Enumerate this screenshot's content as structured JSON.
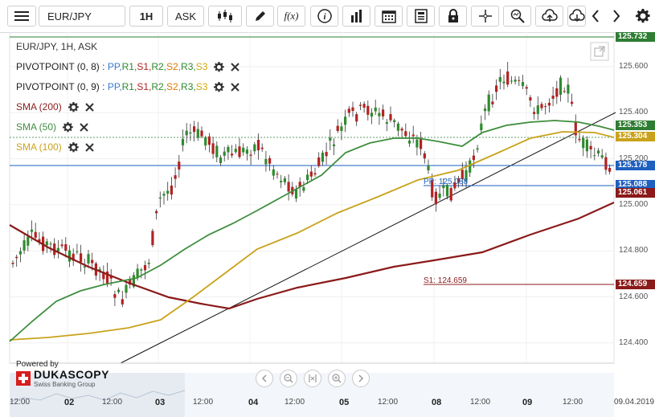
{
  "toolbar": {
    "symbol": "EUR/JPY",
    "period": "1H",
    "side": "ASK",
    "buttons": [
      "menu-icon",
      "candle-type-icon",
      "pencil-icon",
      "function-icon",
      "info-icon",
      "bar-chart-icon",
      "calendar-icon",
      "document-icon",
      "lock-icon",
      "crosshair-icon",
      "zoom-icon",
      "upload-icon",
      "download-icon",
      "arrow-left-icon",
      "arrow-right-icon",
      "gear-icon"
    ],
    "function_label": "f(x)"
  },
  "chart_title": "EUR/JPY, 1H, ASK",
  "legend": [
    {
      "label": "PIVOTPOINT (0, 8)",
      "levels": [
        "PP",
        "R1",
        "S1",
        "R2",
        "S2",
        "R3",
        "S3"
      ],
      "color": "#222222"
    },
    {
      "label": "PIVOTPOINT (0, 9)",
      "levels": [
        "PP",
        "R1",
        "S1",
        "R2",
        "S2",
        "R3",
        "S3"
      ],
      "color": "#222222"
    },
    {
      "label": "SMA (200)",
      "color": "#8b1a1a"
    },
    {
      "label": "SMA (50)",
      "color": "#3e8e3e"
    },
    {
      "label": "SMA (100)",
      "color": "#c9a21a"
    }
  ],
  "pivot_colors": {
    "PP": "#3a7bd5",
    "R1": "#2e8b2e",
    "S1": "#b22222",
    "R2": "#2e8b2e",
    "S2": "#e07b00",
    "R3": "#2e8b2e",
    "S3": "#d4a800"
  },
  "legend_separator": ":",
  "y_axis": {
    "ticks": [
      "125.600",
      "125.400",
      "125.200",
      "125.000",
      "124.800",
      "124.600",
      "124.400"
    ]
  },
  "price_tags": [
    {
      "value": "125.732",
      "color": "#2e7d32"
    },
    {
      "value": "125.353",
      "color": "#2e7d32"
    },
    {
      "value": "125.304",
      "color": "#c9a21a"
    },
    {
      "value": "125.178",
      "color": "#1f5fbf"
    },
    {
      "value": "125.088",
      "color": "#1f5fbf"
    },
    {
      "value": "125.061",
      "color": "#8b1a1a"
    },
    {
      "value": "124.659",
      "color": "#8b1a1a"
    }
  ],
  "chart_annotations": {
    "s1_label": "S1: 124.659",
    "pp_label": "PP: 125.088"
  },
  "x_axis": {
    "labels": [
      {
        "text": "12:00",
        "day": false
      },
      {
        "text": "02",
        "day": true
      },
      {
        "text": "12:00",
        "day": false
      },
      {
        "text": "03",
        "day": true
      },
      {
        "text": "12:00",
        "day": false
      },
      {
        "text": "04",
        "day": true
      },
      {
        "text": "12:00",
        "day": false
      },
      {
        "text": "05",
        "day": true
      },
      {
        "text": "12:00",
        "day": false
      },
      {
        "text": "08",
        "day": true
      },
      {
        "text": "12:00",
        "day": false
      },
      {
        "text": "09",
        "day": true
      },
      {
        "text": "12:00",
        "day": false
      },
      {
        "text": "09.04.2019",
        "day": false
      }
    ]
  },
  "branding": {
    "powered_by": "Powered by",
    "name": "DUKASCOPY",
    "sub": "Swiss Banking Group"
  },
  "nav_buttons": [
    "prev-icon",
    "zoom-out-icon",
    "fit-icon",
    "zoom-in-icon",
    "next-icon"
  ]
}
